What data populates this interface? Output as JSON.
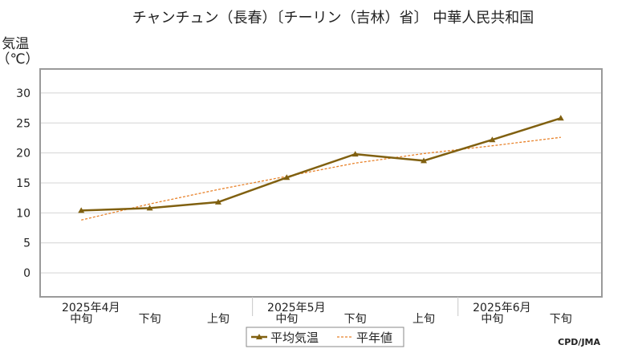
{
  "chart_data": {
    "type": "line",
    "title": "チャンチュン（長春）〔チーリン（吉林）省〕 中華人民共和国",
    "ylabel": "気温\n（℃）",
    "ylim": [
      -4,
      34
    ],
    "yticks": [
      0,
      5,
      10,
      15,
      20,
      25,
      30
    ],
    "grid": true,
    "x_categories": [
      "中旬",
      "下旬",
      "上旬",
      "中旬",
      "下旬",
      "上旬",
      "中旬",
      "下旬"
    ],
    "month_labels": [
      {
        "label": "2025年4月",
        "index": 0
      },
      {
        "label": "2025年5月",
        "index": 3
      },
      {
        "label": "2025年6月",
        "index": 6
      }
    ],
    "series": [
      {
        "name": "平均気温",
        "color": "#806010",
        "style": "solid-marker",
        "values": [
          10.4,
          10.8,
          11.8,
          15.9,
          19.8,
          18.7,
          22.2,
          25.8
        ]
      },
      {
        "name": "平年値",
        "color": "#e8822a",
        "style": "dashed",
        "values": [
          8.8,
          11.5,
          13.9,
          16.1,
          18.3,
          19.9,
          21.2,
          22.6
        ]
      }
    ],
    "legend_position": "bottom-center",
    "source": "CPD/JMA"
  }
}
